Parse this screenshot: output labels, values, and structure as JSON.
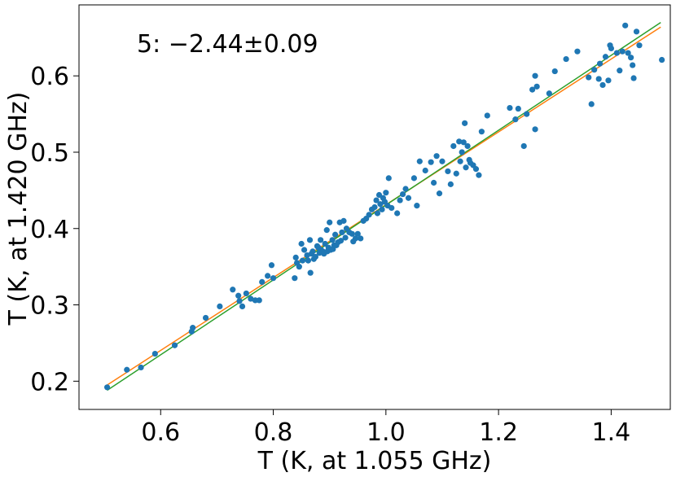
{
  "chart_data": {
    "type": "scatter",
    "title": "",
    "annotation": "5: −2.44±0.09",
    "xlabel": "T (K, at 1.055 GHz)",
    "ylabel": "T (K, at 1.420 GHz)",
    "xlim": [
      0.455,
      1.505
    ],
    "ylim": [
      0.163,
      0.693
    ],
    "xticks": [
      0.6,
      0.8,
      1.0,
      1.2,
      1.4
    ],
    "xtick_labels": [
      "0.6",
      "0.8",
      "1.0",
      "1.2",
      "1.4"
    ],
    "yticks": [
      0.2,
      0.3,
      0.4,
      0.5,
      0.6
    ],
    "ytick_labels": [
      "0.2",
      "0.3",
      "0.4",
      "0.5",
      "0.6"
    ],
    "grid": false,
    "colors": {
      "points": "#1f77b4",
      "fit_orange": "#ff7f0e",
      "fit_green": "#2ca02c"
    },
    "points": [
      [
        0.505,
        0.192
      ],
      [
        0.54,
        0.215
      ],
      [
        0.565,
        0.218
      ],
      [
        0.59,
        0.236
      ],
      [
        0.625,
        0.247
      ],
      [
        0.655,
        0.265
      ],
      [
        0.657,
        0.27
      ],
      [
        0.68,
        0.283
      ],
      [
        0.705,
        0.298
      ],
      [
        0.728,
        0.32
      ],
      [
        0.74,
        0.305
      ],
      [
        0.745,
        0.298
      ],
      [
        0.738,
        0.312
      ],
      [
        0.752,
        0.315
      ],
      [
        0.76,
        0.308
      ],
      [
        0.768,
        0.306
      ],
      [
        0.775,
        0.306
      ],
      [
        0.78,
        0.33
      ],
      [
        0.79,
        0.338
      ],
      [
        0.797,
        0.352
      ],
      [
        0.8,
        0.335
      ],
      [
        0.838,
        0.335
      ],
      [
        0.84,
        0.362
      ],
      [
        0.842,
        0.355
      ],
      [
        0.846,
        0.35
      ],
      [
        0.85,
        0.38
      ],
      [
        0.852,
        0.358
      ],
      [
        0.855,
        0.372
      ],
      [
        0.86,
        0.365
      ],
      [
        0.862,
        0.358
      ],
      [
        0.865,
        0.385
      ],
      [
        0.866,
        0.342
      ],
      [
        0.868,
        0.367
      ],
      [
        0.87,
        0.37
      ],
      [
        0.872,
        0.36
      ],
      [
        0.875,
        0.363
      ],
      [
        0.878,
        0.377
      ],
      [
        0.88,
        0.375
      ],
      [
        0.882,
        0.368
      ],
      [
        0.884,
        0.385
      ],
      [
        0.885,
        0.372
      ],
      [
        0.888,
        0.37
      ],
      [
        0.89,
        0.367
      ],
      [
        0.892,
        0.38
      ],
      [
        0.895,
        0.398
      ],
      [
        0.896,
        0.37
      ],
      [
        0.898,
        0.375
      ],
      [
        0.9,
        0.408
      ],
      [
        0.902,
        0.372
      ],
      [
        0.905,
        0.385
      ],
      [
        0.906,
        0.373
      ],
      [
        0.908,
        0.378
      ],
      [
        0.91,
        0.392
      ],
      [
        0.912,
        0.378
      ],
      [
        0.915,
        0.382
      ],
      [
        0.918,
        0.408
      ],
      [
        0.92,
        0.384
      ],
      [
        0.922,
        0.395
      ],
      [
        0.925,
        0.41
      ],
      [
        0.928,
        0.388
      ],
      [
        0.93,
        0.4
      ],
      [
        0.935,
        0.395
      ],
      [
        0.94,
        0.393
      ],
      [
        0.942,
        0.383
      ],
      [
        0.946,
        0.387
      ],
      [
        0.95,
        0.393
      ],
      [
        0.955,
        0.387
      ],
      [
        0.96,
        0.41
      ],
      [
        0.965,
        0.413
      ],
      [
        0.97,
        0.418
      ],
      [
        0.975,
        0.425
      ],
      [
        0.98,
        0.428
      ],
      [
        0.983,
        0.437
      ],
      [
        0.985,
        0.42
      ],
      [
        0.988,
        0.444
      ],
      [
        0.99,
        0.432
      ],
      [
        0.993,
        0.425
      ],
      [
        0.995,
        0.44
      ],
      [
        0.998,
        0.435
      ],
      [
        1.0,
        0.447
      ],
      [
        1.003,
        0.43
      ],
      [
        1.005,
        0.466
      ],
      [
        1.01,
        0.427
      ],
      [
        1.02,
        0.42
      ],
      [
        1.025,
        0.437
      ],
      [
        1.03,
        0.445
      ],
      [
        1.035,
        0.452
      ],
      [
        1.04,
        0.44
      ],
      [
        1.05,
        0.466
      ],
      [
        1.055,
        0.43
      ],
      [
        1.06,
        0.488
      ],
      [
        1.07,
        0.476
      ],
      [
        1.08,
        0.487
      ],
      [
        1.085,
        0.46
      ],
      [
        1.09,
        0.495
      ],
      [
        1.095,
        0.446
      ],
      [
        1.1,
        0.488
      ],
      [
        1.11,
        0.475
      ],
      [
        1.115,
        0.458
      ],
      [
        1.12,
        0.508
      ],
      [
        1.125,
        0.472
      ],
      [
        1.13,
        0.514
      ],
      [
        1.132,
        0.488
      ],
      [
        1.135,
        0.5
      ],
      [
        1.138,
        0.513
      ],
      [
        1.14,
        0.538
      ],
      [
        1.142,
        0.48
      ],
      [
        1.145,
        0.508
      ],
      [
        1.148,
        0.49
      ],
      [
        1.15,
        0.486
      ],
      [
        1.155,
        0.483
      ],
      [
        1.16,
        0.478
      ],
      [
        1.165,
        0.47
      ],
      [
        1.17,
        0.527
      ],
      [
        1.18,
        0.548
      ],
      [
        1.22,
        0.558
      ],
      [
        1.23,
        0.543
      ],
      [
        1.235,
        0.557
      ],
      [
        1.245,
        0.508
      ],
      [
        1.25,
        0.55
      ],
      [
        1.26,
        0.582
      ],
      [
        1.265,
        0.53
      ],
      [
        1.268,
        0.586
      ],
      [
        1.265,
        0.6
      ],
      [
        1.29,
        0.577
      ],
      [
        1.3,
        0.606
      ],
      [
        1.32,
        0.622
      ],
      [
        1.34,
        0.632
      ],
      [
        1.36,
        0.598
      ],
      [
        1.365,
        0.563
      ],
      [
        1.37,
        0.608
      ],
      [
        1.378,
        0.596
      ],
      [
        1.38,
        0.616
      ],
      [
        1.385,
        0.588
      ],
      [
        1.39,
        0.625
      ],
      [
        1.395,
        0.594
      ],
      [
        1.398,
        0.64
      ],
      [
        1.4,
        0.636
      ],
      [
        1.41,
        0.63
      ],
      [
        1.415,
        0.607
      ],
      [
        1.42,
        0.632
      ],
      [
        1.425,
        0.666
      ],
      [
        1.43,
        0.63
      ],
      [
        1.435,
        0.624
      ],
      [
        1.438,
        0.614
      ],
      [
        1.44,
        0.597
      ],
      [
        1.445,
        0.658
      ],
      [
        1.45,
        0.64
      ],
      [
        1.49,
        0.621
      ]
    ],
    "fit_lines": [
      {
        "x": [
          0.505,
          1.488
        ],
        "y": [
          0.195,
          0.664
        ]
      },
      {
        "x": [
          0.505,
          1.488
        ],
        "y": [
          0.188,
          0.67
        ]
      }
    ]
  }
}
